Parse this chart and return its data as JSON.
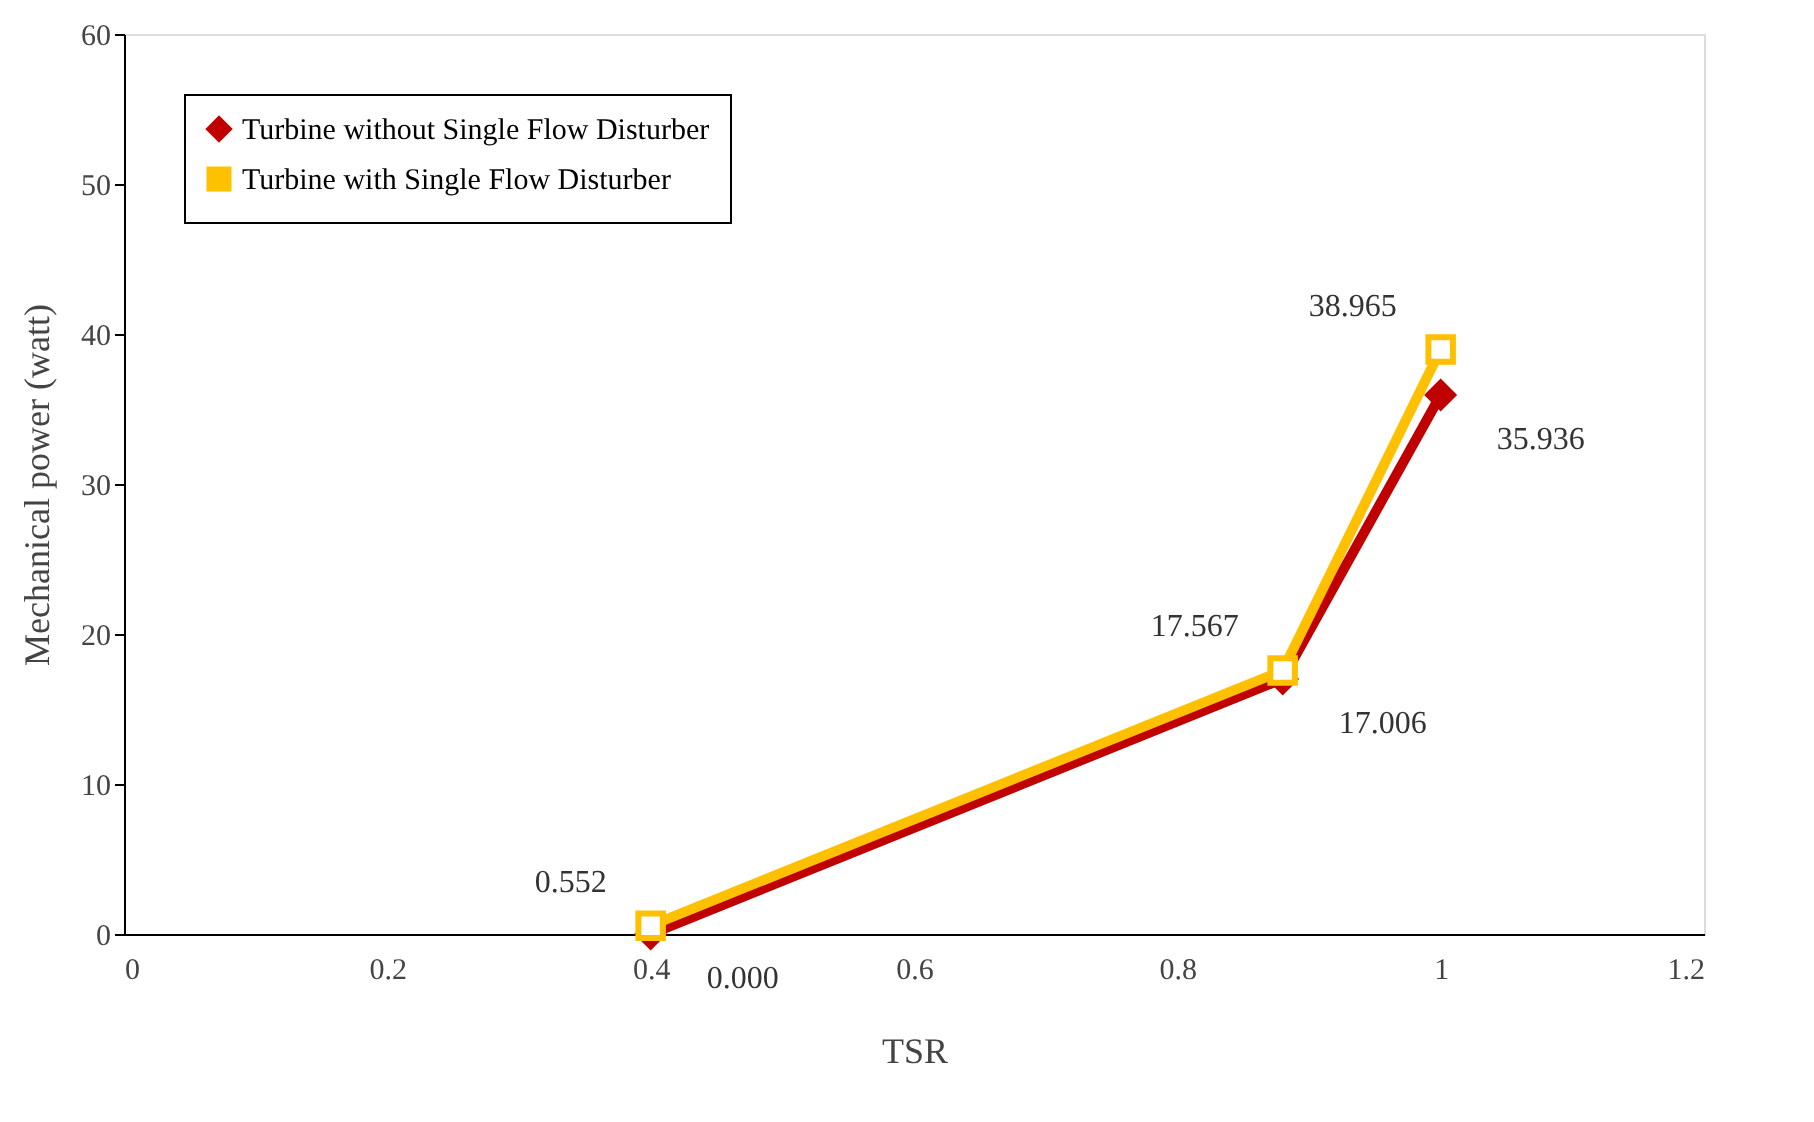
{
  "chart_data": {
    "type": "line",
    "xlabel": "TSR",
    "ylabel": "Mechanical power (watt)",
    "x": [
      0.4,
      0.88,
      1.0
    ],
    "series": [
      {
        "name": "Turbine without Single Flow Disturber",
        "color": "#c00000",
        "marker": "diamond",
        "values": [
          0.0,
          17.006,
          35.936
        ],
        "value_labels": [
          "0.000",
          "17.006",
          "35.936"
        ]
      },
      {
        "name": "Turbine with Single Flow Disturber",
        "color": "#ffc000",
        "marker": "square",
        "values": [
          0.552,
          17.567,
          38.965
        ],
        "value_labels": [
          "0.552",
          "17.567",
          "38.965"
        ]
      }
    ],
    "xlim": [
      0,
      1.2
    ],
    "xticks": [
      0,
      0.2,
      0.4,
      0.6,
      0.8,
      1,
      1.2
    ],
    "ylim": [
      0,
      60
    ],
    "yticks": [
      0,
      10,
      20,
      30,
      40,
      50,
      60
    ],
    "grid": false,
    "legend": "top left"
  }
}
